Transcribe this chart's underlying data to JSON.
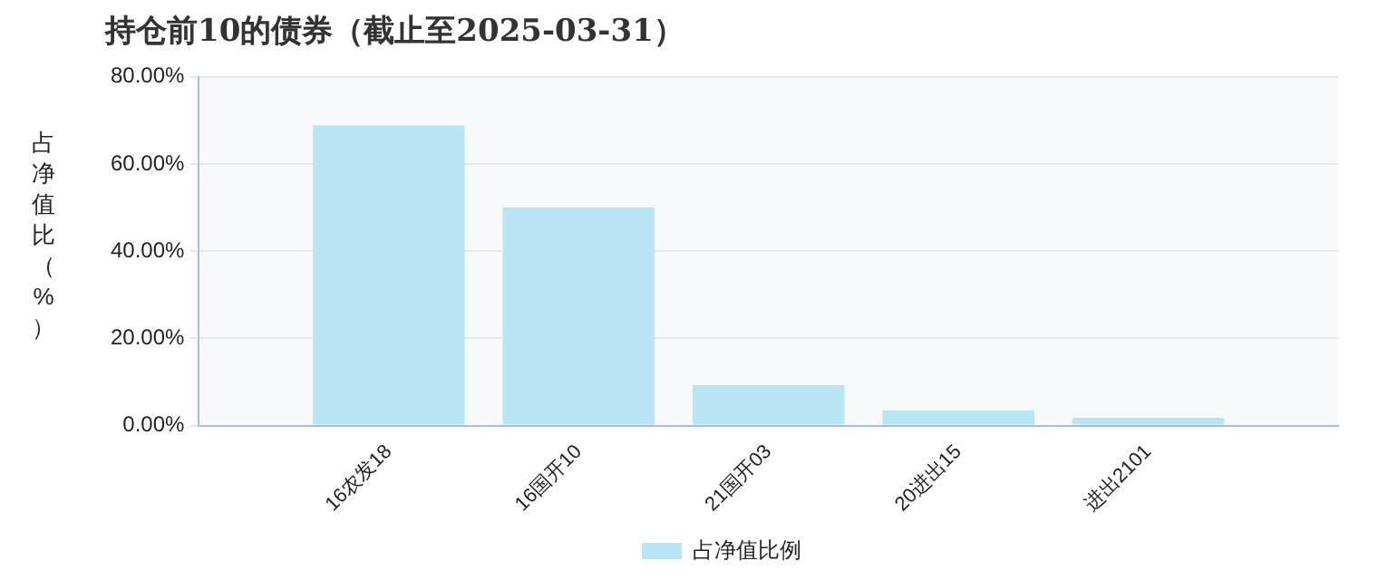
{
  "chart_data": {
    "type": "bar",
    "title": "持仓前10的债券（截止至2025-03-31）",
    "ylabel": "占净值比（%）",
    "categories": [
      null,
      "16农发18",
      "16国开10",
      "21国开03",
      "20进出15",
      "进出2101",
      null
    ],
    "series": [
      {
        "name": "占净值比例",
        "color": "#b9e6f4",
        "values": [
          null,
          68.9,
          50,
          9.3,
          3.5,
          1.8,
          null
        ]
      }
    ],
    "ylim": [
      0,
      80
    ],
    "yticks": [
      {
        "value": 0,
        "label": "0.00%"
      },
      {
        "value": 20,
        "label": "20.00%"
      },
      {
        "value": 40,
        "label": "40.00%"
      },
      {
        "value": 60,
        "label": "60.00%"
      },
      {
        "value": 80,
        "label": "80.00%"
      }
    ],
    "grid": "y",
    "legend": "bottom"
  }
}
